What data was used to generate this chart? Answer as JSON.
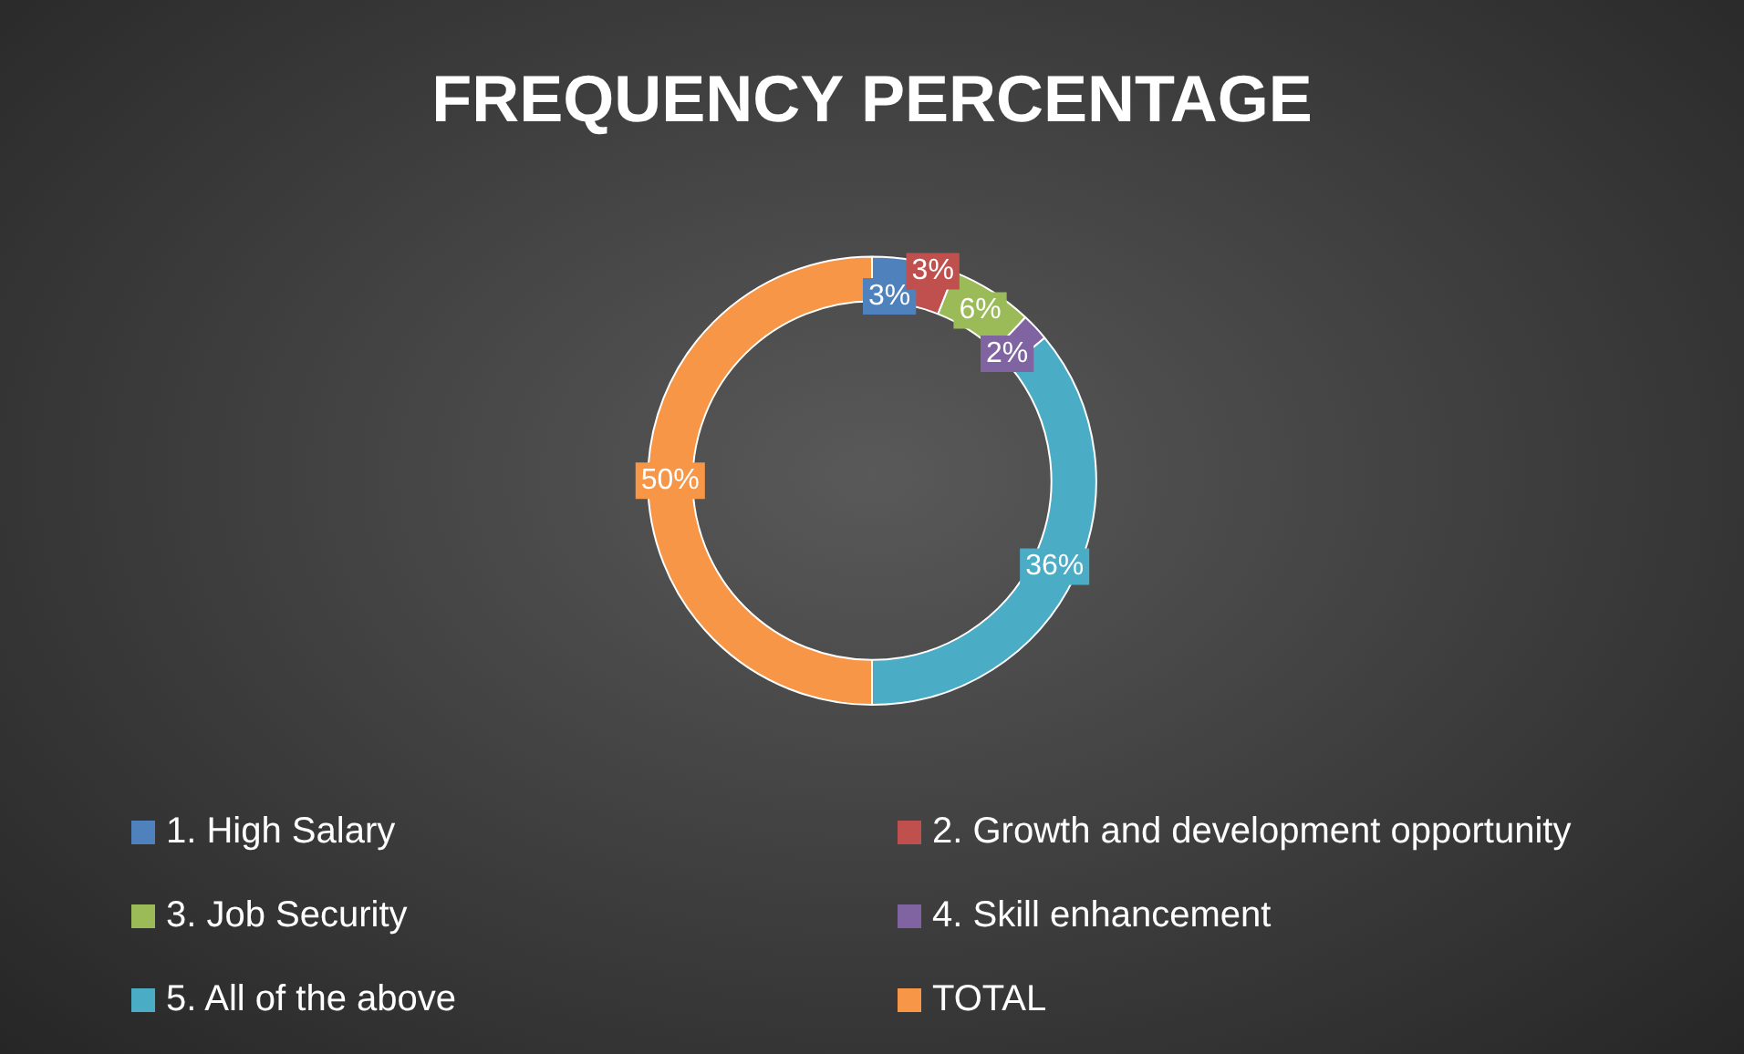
{
  "chart_data": {
    "type": "donut",
    "title": "FREQUENCY PERCENTAGE",
    "categories": [
      "1. High Salary",
      "2. Growth and development opportunity",
      "3. Job Security",
      "4. Skill enhancement",
      "5. All of the above",
      "TOTAL"
    ],
    "values": [
      3,
      3,
      6,
      2,
      36,
      50
    ],
    "colors": [
      "#4f81bd",
      "#c0504d",
      "#9bbb59",
      "#8064a2",
      "#4bacc6",
      "#f79646"
    ],
    "value_labels": [
      "3%",
      "3%",
      "6%",
      "2%",
      "36%",
      "50%"
    ],
    "legend": "bottom"
  }
}
